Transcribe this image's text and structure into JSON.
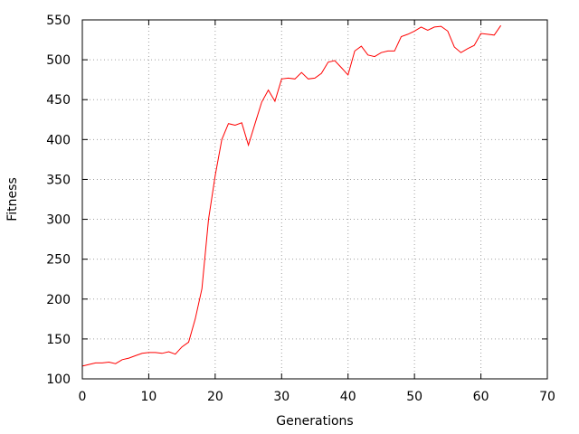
{
  "chart_data": {
    "type": "line",
    "title": "",
    "xlabel": "Generations",
    "ylabel": "Fitness",
    "xlim": [
      0,
      70
    ],
    "ylim": [
      100,
      550
    ],
    "xticks": [
      0,
      10,
      20,
      30,
      40,
      50,
      60,
      70
    ],
    "yticks": [
      100,
      150,
      200,
      250,
      300,
      350,
      400,
      450,
      500,
      550
    ],
    "grid": true,
    "legend": "none",
    "series": [
      {
        "color": "#ff0000",
        "x": [
          0,
          1,
          2,
          3,
          4,
          5,
          6,
          7,
          8,
          9,
          10,
          11,
          12,
          13,
          14,
          15,
          16,
          17,
          18,
          19,
          20,
          21,
          22,
          23,
          24,
          25,
          26,
          27,
          28,
          29,
          30,
          31,
          32,
          33,
          34,
          35,
          36,
          37,
          38,
          39,
          40,
          41,
          42,
          43,
          44,
          45,
          46,
          47,
          48,
          49,
          50,
          51,
          52,
          53,
          54,
          55,
          56,
          57,
          58,
          59,
          60,
          61,
          62,
          63
        ],
        "y": [
          116,
          118,
          120,
          120,
          121,
          119,
          124,
          126,
          129,
          132,
          133,
          133,
          132,
          134,
          131,
          140,
          146,
          175,
          213,
          300,
          355,
          400,
          420,
          418,
          421,
          393,
          420,
          447,
          462,
          448,
          476,
          477,
          476,
          484,
          476,
          477,
          483,
          497,
          499,
          490,
          481,
          511,
          517,
          506,
          504,
          509,
          511,
          511,
          529,
          532,
          536,
          541,
          537,
          541,
          542,
          536,
          516,
          509,
          514,
          518,
          533,
          532,
          531,
          543
        ]
      }
    ]
  }
}
